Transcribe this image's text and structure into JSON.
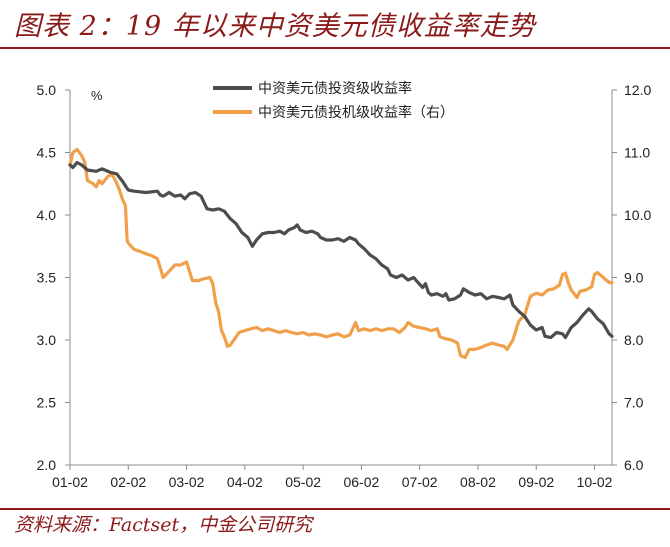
{
  "header": {
    "title": "图表 2：19 年以来中资美元债收益率走势"
  },
  "footer": {
    "source": "资料来源：Factset，中金公司研究"
  },
  "colors": {
    "accent": "#8b1a1a",
    "series_ig": "#4d4d4d",
    "series_hy": "#f0a04b"
  },
  "chart_data": {
    "type": "line",
    "title": "",
    "left_axis": {
      "unit": "%",
      "range": [
        2.0,
        5.0
      ],
      "ticks": [
        "5.0",
        "4.5",
        "4.0",
        "3.5",
        "3.0",
        "2.5",
        "2.0"
      ]
    },
    "right_axis": {
      "range": [
        6.0,
        12.0
      ],
      "ticks": [
        "12.0",
        "11.0",
        "10.0",
        "9.0",
        "8.0",
        "7.0",
        "6.0"
      ]
    },
    "x_ticks": [
      "01-02",
      "02-02",
      "03-02",
      "04-02",
      "05-02",
      "06-02",
      "07-02",
      "08-02",
      "09-02",
      "10-02"
    ],
    "x_range": [
      0,
      9.3
    ],
    "legend_position": "top-center",
    "series": [
      {
        "name": "中资美元债投资级收益率",
        "axis": "left",
        "points": [
          [
            0,
            4.4
          ],
          [
            0.05,
            4.38
          ],
          [
            0.12,
            4.42
          ],
          [
            0.2,
            4.4
          ],
          [
            0.3,
            4.36
          ],
          [
            0.45,
            4.35
          ],
          [
            0.55,
            4.37
          ],
          [
            0.7,
            4.34
          ],
          [
            0.8,
            4.33
          ],
          [
            0.9,
            4.27
          ],
          [
            0.97,
            4.22
          ],
          [
            1.0,
            4.2
          ],
          [
            1.1,
            4.19
          ],
          [
            1.3,
            4.18
          ],
          [
            1.5,
            4.19
          ],
          [
            1.55,
            4.16
          ],
          [
            1.6,
            4.15
          ],
          [
            1.7,
            4.18
          ],
          [
            1.8,
            4.15
          ],
          [
            1.9,
            4.16
          ],
          [
            1.97,
            4.13
          ],
          [
            2.05,
            4.17
          ],
          [
            2.15,
            4.18
          ],
          [
            2.25,
            4.15
          ],
          [
            2.35,
            4.05
          ],
          [
            2.45,
            4.04
          ],
          [
            2.55,
            4.05
          ],
          [
            2.65,
            4.03
          ],
          [
            2.75,
            3.97
          ],
          [
            2.85,
            3.93
          ],
          [
            2.95,
            3.86
          ],
          [
            3.05,
            3.82
          ],
          [
            3.13,
            3.75
          ],
          [
            3.2,
            3.8
          ],
          [
            3.3,
            3.85
          ],
          [
            3.4,
            3.86
          ],
          [
            3.5,
            3.86
          ],
          [
            3.6,
            3.87
          ],
          [
            3.68,
            3.85
          ],
          [
            3.75,
            3.88
          ],
          [
            3.85,
            3.9
          ],
          [
            3.9,
            3.92
          ],
          [
            3.95,
            3.88
          ],
          [
            4.05,
            3.86
          ],
          [
            4.15,
            3.87
          ],
          [
            4.25,
            3.85
          ],
          [
            4.3,
            3.82
          ],
          [
            4.4,
            3.8
          ],
          [
            4.5,
            3.8
          ],
          [
            4.6,
            3.81
          ],
          [
            4.7,
            3.79
          ],
          [
            4.8,
            3.82
          ],
          [
            4.9,
            3.8
          ],
          [
            4.95,
            3.77
          ],
          [
            5.05,
            3.73
          ],
          [
            5.15,
            3.68
          ],
          [
            5.25,
            3.65
          ],
          [
            5.35,
            3.6
          ],
          [
            5.45,
            3.57
          ],
          [
            5.5,
            3.52
          ],
          [
            5.6,
            3.5
          ],
          [
            5.7,
            3.52
          ],
          [
            5.8,
            3.48
          ],
          [
            5.9,
            3.5
          ],
          [
            5.95,
            3.47
          ],
          [
            6.05,
            3.42
          ],
          [
            6.1,
            3.45
          ],
          [
            6.15,
            3.38
          ],
          [
            6.2,
            3.36
          ],
          [
            6.3,
            3.37
          ],
          [
            6.4,
            3.35
          ],
          [
            6.45,
            3.37
          ],
          [
            6.5,
            3.32
          ],
          [
            6.6,
            3.33
          ],
          [
            6.7,
            3.36
          ],
          [
            6.75,
            3.41
          ],
          [
            6.85,
            3.38
          ],
          [
            6.95,
            3.36
          ],
          [
            7.05,
            3.37
          ],
          [
            7.15,
            3.33
          ],
          [
            7.25,
            3.35
          ],
          [
            7.35,
            3.34
          ],
          [
            7.45,
            3.33
          ],
          [
            7.55,
            3.36
          ],
          [
            7.6,
            3.28
          ],
          [
            7.7,
            3.23
          ],
          [
            7.8,
            3.19
          ],
          [
            7.9,
            3.12
          ],
          [
            8.0,
            3.08
          ],
          [
            8.1,
            3.1
          ],
          [
            8.15,
            3.03
          ],
          [
            8.25,
            3.02
          ],
          [
            8.35,
            3.06
          ],
          [
            8.45,
            3.05
          ],
          [
            8.5,
            3.02
          ],
          [
            8.6,
            3.1
          ],
          [
            8.7,
            3.14
          ],
          [
            8.8,
            3.2
          ],
          [
            8.9,
            3.25
          ],
          [
            8.95,
            3.23
          ],
          [
            9.05,
            3.17
          ],
          [
            9.15,
            3.13
          ],
          [
            9.25,
            3.05
          ],
          [
            9.3,
            3.03
          ]
        ]
      },
      {
        "name": "中资美元债投机级收益率（右）",
        "axis": "right",
        "points": [
          [
            0,
            10.8
          ],
          [
            0.05,
            11.0
          ],
          [
            0.12,
            11.05
          ],
          [
            0.2,
            10.95
          ],
          [
            0.25,
            10.85
          ],
          [
            0.3,
            10.55
          ],
          [
            0.4,
            10.5
          ],
          [
            0.45,
            10.45
          ],
          [
            0.5,
            10.55
          ],
          [
            0.55,
            10.5
          ],
          [
            0.65,
            10.62
          ],
          [
            0.72,
            10.65
          ],
          [
            0.78,
            10.55
          ],
          [
            0.85,
            10.4
          ],
          [
            0.9,
            10.25
          ],
          [
            0.95,
            10.15
          ],
          [
            0.98,
            9.6
          ],
          [
            1.0,
            9.55
          ],
          [
            1.1,
            9.45
          ],
          [
            1.2,
            9.42
          ],
          [
            1.3,
            9.38
          ],
          [
            1.4,
            9.35
          ],
          [
            1.5,
            9.3
          ],
          [
            1.55,
            9.15
          ],
          [
            1.6,
            9.0
          ],
          [
            1.7,
            9.1
          ],
          [
            1.8,
            9.2
          ],
          [
            1.9,
            9.2
          ],
          [
            2.0,
            9.25
          ],
          [
            2.05,
            9.1
          ],
          [
            2.1,
            8.95
          ],
          [
            2.2,
            8.95
          ],
          [
            2.3,
            8.98
          ],
          [
            2.4,
            9.0
          ],
          [
            2.45,
            8.9
          ],
          [
            2.5,
            8.6
          ],
          [
            2.55,
            8.45
          ],
          [
            2.6,
            8.15
          ],
          [
            2.65,
            8.05
          ],
          [
            2.7,
            7.9
          ],
          [
            2.75,
            7.92
          ],
          [
            2.85,
            8.05
          ],
          [
            2.9,
            8.12
          ],
          [
            3.0,
            8.15
          ],
          [
            3.1,
            8.18
          ],
          [
            3.2,
            8.2
          ],
          [
            3.3,
            8.15
          ],
          [
            3.4,
            8.18
          ],
          [
            3.5,
            8.15
          ],
          [
            3.6,
            8.12
          ],
          [
            3.7,
            8.15
          ],
          [
            3.8,
            8.12
          ],
          [
            3.9,
            8.1
          ],
          [
            4.0,
            8.12
          ],
          [
            4.1,
            8.08
          ],
          [
            4.2,
            8.1
          ],
          [
            4.3,
            8.08
          ],
          [
            4.4,
            8.05
          ],
          [
            4.5,
            8.08
          ],
          [
            4.6,
            8.1
          ],
          [
            4.7,
            8.05
          ],
          [
            4.8,
            8.08
          ],
          [
            4.85,
            8.18
          ],
          [
            4.9,
            8.28
          ],
          [
            4.95,
            8.15
          ],
          [
            5.05,
            8.18
          ],
          [
            5.15,
            8.15
          ],
          [
            5.25,
            8.18
          ],
          [
            5.35,
            8.15
          ],
          [
            5.45,
            8.18
          ],
          [
            5.55,
            8.18
          ],
          [
            5.65,
            8.12
          ],
          [
            5.75,
            8.2
          ],
          [
            5.8,
            8.28
          ],
          [
            5.9,
            8.22
          ],
          [
            6.0,
            8.2
          ],
          [
            6.1,
            8.18
          ],
          [
            6.2,
            8.15
          ],
          [
            6.3,
            8.18
          ],
          [
            6.35,
            8.05
          ],
          [
            6.45,
            8.02
          ],
          [
            6.55,
            8.0
          ],
          [
            6.65,
            7.95
          ],
          [
            6.7,
            7.75
          ],
          [
            6.78,
            7.72
          ],
          [
            6.85,
            7.85
          ],
          [
            6.95,
            7.85
          ],
          [
            7.05,
            7.88
          ],
          [
            7.15,
            7.92
          ],
          [
            7.25,
            7.95
          ],
          [
            7.35,
            7.92
          ],
          [
            7.45,
            7.9
          ],
          [
            7.5,
            7.85
          ],
          [
            7.6,
            8.0
          ],
          [
            7.65,
            8.15
          ],
          [
            7.7,
            8.3
          ],
          [
            7.8,
            8.4
          ],
          [
            7.85,
            8.55
          ],
          [
            7.9,
            8.7
          ],
          [
            8.0,
            8.75
          ],
          [
            8.1,
            8.72
          ],
          [
            8.2,
            8.8
          ],
          [
            8.3,
            8.82
          ],
          [
            8.4,
            8.88
          ],
          [
            8.45,
            9.05
          ],
          [
            8.5,
            9.07
          ],
          [
            8.55,
            8.92
          ],
          [
            8.6,
            8.8
          ],
          [
            8.7,
            8.68
          ],
          [
            8.75,
            8.78
          ],
          [
            8.85,
            8.8
          ],
          [
            8.95,
            8.85
          ],
          [
            9.0,
            9.05
          ],
          [
            9.05,
            9.08
          ],
          [
            9.15,
            9.0
          ],
          [
            9.25,
            8.92
          ],
          [
            9.3,
            8.92
          ]
        ]
      }
    ]
  }
}
